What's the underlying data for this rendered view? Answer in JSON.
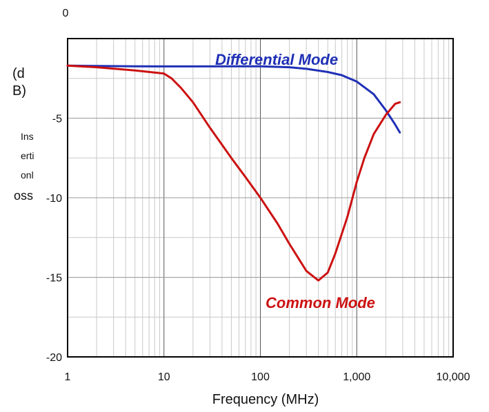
{
  "chart_data": {
    "type": "line",
    "xscale": "log",
    "xlim": [
      1,
      10000
    ],
    "ylim": [
      -20,
      0
    ],
    "x_ticks": [
      1,
      10,
      100,
      1000,
      10000
    ],
    "x_tick_labels": [
      "1",
      "10",
      "100",
      "1,000",
      "10,000"
    ],
    "y_ticks": [
      0,
      -5,
      -10,
      -15,
      -20
    ],
    "y_tick_labels": [
      "0",
      "-5",
      "-10",
      "-15",
      "-20"
    ],
    "xlabel": "Frequency (MHz)",
    "ylabel_unit_lines": [
      "(d",
      "B)"
    ],
    "ylabel_text_lines": [
      "Ins",
      "erti",
      "onl",
      "oss"
    ],
    "grid": true,
    "series": [
      {
        "name": "Differential Mode",
        "color": "#1f2fb5",
        "x": [
          1,
          2,
          5,
          10,
          20,
          50,
          100,
          200,
          300,
          500,
          700,
          1000,
          1500,
          2000,
          2500,
          2800
        ],
        "y": [
          -1.7,
          -1.72,
          -1.74,
          -1.75,
          -1.75,
          -1.74,
          -1.74,
          -1.8,
          -1.9,
          -2.1,
          -2.3,
          -2.7,
          -3.5,
          -4.5,
          -5.4,
          -5.9
        ]
      },
      {
        "name": "Common Mode",
        "color": "#cc1111",
        "x": [
          1,
          2,
          5,
          10,
          12,
          15,
          20,
          30,
          50,
          70,
          100,
          150,
          200,
          300,
          400,
          500,
          600,
          800,
          1000,
          1200,
          1500,
          2000,
          2500,
          2800
        ],
        "y": [
          -1.7,
          -1.8,
          -2.0,
          -2.2,
          -2.5,
          -3.1,
          -4.0,
          -5.6,
          -7.5,
          -8.7,
          -10.0,
          -11.6,
          -12.9,
          -14.6,
          -15.2,
          -14.7,
          -13.5,
          -11.2,
          -9.0,
          -7.5,
          -6.0,
          -4.8,
          -4.1,
          -4.0
        ]
      }
    ]
  }
}
